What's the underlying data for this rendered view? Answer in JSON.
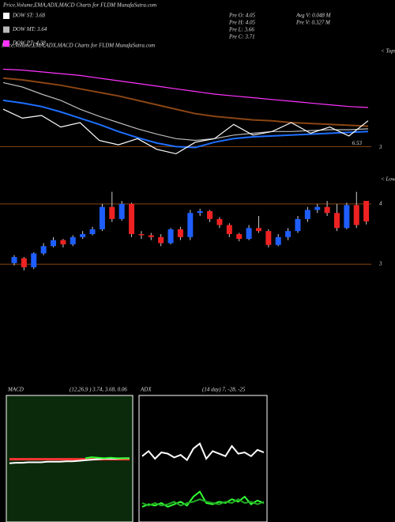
{
  "chart_data": [
    {
      "type": "line",
      "title": "Price,Volume,EMA,ADX,MACD Charts for FLDM MunafaSutra.com",
      "info": [
        "Pre O: 4.05",
        "Pre H: 4.05",
        "Pre L: 3.66",
        "Pre C: 3.71",
        "Avg V: 0.048 M",
        "Pre V: 0.327 M"
      ],
      "annotations": [
        "< Tops",
        "3"
      ],
      "hlines": [
        6.53
      ],
      "ylim": [
        6.4,
        7.6
      ],
      "x": [
        0,
        1,
        2,
        3,
        4,
        5,
        6,
        7,
        8,
        9,
        10,
        11,
        12,
        13,
        14,
        15,
        16,
        17,
        18,
        19
      ],
      "series": [
        {
          "color": "#8b4513",
          "values": [
            7.3,
            7.28,
            7.25,
            7.22,
            7.18,
            7.14,
            7.1,
            7.05,
            7.0,
            6.95,
            6.9,
            6.87,
            6.85,
            6.83,
            6.82,
            6.8,
            6.79,
            6.78,
            6.77,
            6.76
          ]
        },
        {
          "name": "DOW PT: 4.38",
          "color": "#ff33ff",
          "values": [
            7.4,
            7.39,
            7.37,
            7.35,
            7.33,
            7.3,
            7.27,
            7.24,
            7.21,
            7.18,
            7.15,
            7.12,
            7.1,
            7.08,
            7.06,
            7.04,
            7.02,
            7.0,
            6.98,
            6.97
          ]
        },
        {
          "name": "DOW MT: 3.64",
          "color": "#bbbbbb",
          "values": [
            7.25,
            7.2,
            7.12,
            7.05,
            6.95,
            6.87,
            6.8,
            6.73,
            6.67,
            6.62,
            6.6,
            6.62,
            6.66,
            6.68,
            6.7,
            6.7,
            6.71,
            6.72,
            6.72,
            6.73
          ]
        },
        {
          "color": "#1e6fff",
          "values": [
            7.05,
            7.02,
            6.98,
            6.92,
            6.85,
            6.78,
            6.7,
            6.63,
            6.57,
            6.53,
            6.52,
            6.58,
            6.62,
            6.64,
            6.65,
            6.66,
            6.67,
            6.68,
            6.69,
            6.7
          ]
        },
        {
          "name": "DOW ST: 3.68",
          "color": "#ffffff",
          "values": [
            6.95,
            6.85,
            6.88,
            6.75,
            6.8,
            6.6,
            6.55,
            6.62,
            6.5,
            6.45,
            6.58,
            6.62,
            6.78,
            6.66,
            6.7,
            6.8,
            6.68,
            6.75,
            6.65,
            6.82
          ]
        }
      ]
    },
    {
      "type": "candlestick",
      "annotations": [
        "< Lows"
      ],
      "ylim": [
        2.53,
        4.43
      ],
      "yticks": [
        4,
        3
      ],
      "up_color": "#1e5eff",
      "down_color": "#ee2222",
      "open": [
        3.02,
        3.1,
        2.95,
        3.18,
        3.3,
        3.4,
        3.33,
        3.45,
        3.5,
        3.58,
        3.95,
        3.75,
        4.0,
        3.5,
        3.48,
        3.45,
        3.35,
        3.58,
        3.45,
        3.85,
        3.88,
        3.75,
        3.65,
        3.5,
        3.42,
        3.6,
        3.55,
        3.32,
        3.45,
        3.55,
        3.75,
        3.9,
        3.95,
        3.85,
        3.6,
        3.98,
        4.05
      ],
      "high": [
        3.15,
        3.12,
        3.2,
        3.35,
        3.45,
        3.42,
        3.48,
        3.55,
        3.62,
        4.0,
        4.2,
        4.05,
        4.02,
        3.55,
        3.52,
        3.5,
        3.6,
        3.62,
        3.9,
        3.92,
        3.9,
        3.78,
        3.68,
        3.52,
        3.65,
        3.8,
        3.58,
        3.5,
        3.6,
        3.8,
        3.95,
        4.0,
        4.05,
        4.0,
        4.02,
        4.2,
        4.05
      ],
      "low": [
        2.98,
        2.9,
        2.92,
        3.15,
        3.28,
        3.28,
        3.3,
        3.42,
        3.48,
        3.55,
        3.7,
        3.72,
        3.45,
        3.42,
        3.4,
        3.3,
        3.33,
        3.4,
        3.4,
        3.8,
        3.7,
        3.6,
        3.45,
        3.38,
        3.4,
        3.52,
        3.28,
        3.3,
        3.4,
        3.52,
        3.7,
        3.85,
        3.8,
        3.55,
        3.58,
        3.6,
        3.66
      ],
      "close": [
        3.12,
        2.95,
        3.18,
        3.3,
        3.4,
        3.33,
        3.45,
        3.5,
        3.58,
        3.95,
        3.75,
        4.0,
        3.5,
        3.48,
        3.45,
        3.35,
        3.58,
        3.45,
        3.85,
        3.88,
        3.75,
        3.65,
        3.5,
        3.42,
        3.6,
        3.55,
        3.32,
        3.45,
        3.55,
        3.75,
        3.9,
        3.95,
        3.85,
        3.6,
        3.98,
        3.65,
        3.71
      ]
    },
    {
      "type": "line",
      "title": "MACD",
      "subtitle": "(12,26,9 ) 3.74, 3.68, 0.06",
      "background": "#0b2a0b",
      "ylim": [
        2.5,
        5.0
      ],
      "x": [
        0,
        1,
        2,
        3,
        4,
        5,
        6,
        7,
        8,
        9,
        10,
        11,
        12,
        13,
        14,
        15,
        16,
        17,
        18,
        19
      ],
      "series": [
        {
          "color": "#ff3333",
          "values": [
            3.74,
            3.74,
            3.74,
            3.74,
            3.74,
            3.74,
            3.74,
            3.74,
            3.74,
            3.74,
            3.74,
            3.74,
            3.74,
            3.74,
            3.74,
            3.74,
            3.74,
            3.74,
            3.74,
            3.74
          ]
        },
        {
          "color": "#ffffff",
          "values": [
            3.66,
            3.67,
            3.67,
            3.68,
            3.68,
            3.68,
            3.69,
            3.69,
            3.69,
            3.7,
            3.7,
            3.71,
            3.72,
            3.73,
            3.74,
            3.75,
            3.75,
            3.75,
            3.76,
            3.76
          ]
        },
        {
          "color": "#33ff33",
          "values": [
            null,
            null,
            null,
            null,
            null,
            null,
            null,
            null,
            null,
            null,
            null,
            null,
            3.76,
            3.78,
            3.77,
            3.76,
            3.77,
            3.76,
            3.76,
            3.76
          ]
        }
      ]
    },
    {
      "type": "line",
      "title": "ADX",
      "subtitle": "(14  day) 7, -28, -25",
      "background": "#000000",
      "ylim": [
        0,
        100
      ],
      "x": [
        0,
        1,
        2,
        3,
        4,
        5,
        6,
        7,
        8,
        9,
        10,
        11,
        12,
        13,
        14,
        15,
        16,
        17,
        18,
        19
      ],
      "series": [
        {
          "color": "#ffffff",
          "values": [
            52,
            56,
            50,
            55,
            54,
            51,
            53,
            49,
            58,
            62,
            50,
            56,
            54,
            52,
            60,
            54,
            55,
            52,
            57,
            55
          ]
        },
        {
          "color": "#33ff33",
          "values": [
            12,
            14,
            13,
            15,
            12,
            14,
            16,
            13,
            20,
            24,
            15,
            14,
            16,
            15,
            18,
            16,
            20,
            14,
            17,
            15
          ]
        },
        {
          "color": "#22aa22",
          "values": [
            15,
            13,
            15,
            13,
            14,
            16,
            13,
            15,
            16,
            18,
            16,
            15,
            14,
            16,
            15,
            18,
            15,
            16,
            14,
            16
          ]
        }
      ]
    }
  ]
}
